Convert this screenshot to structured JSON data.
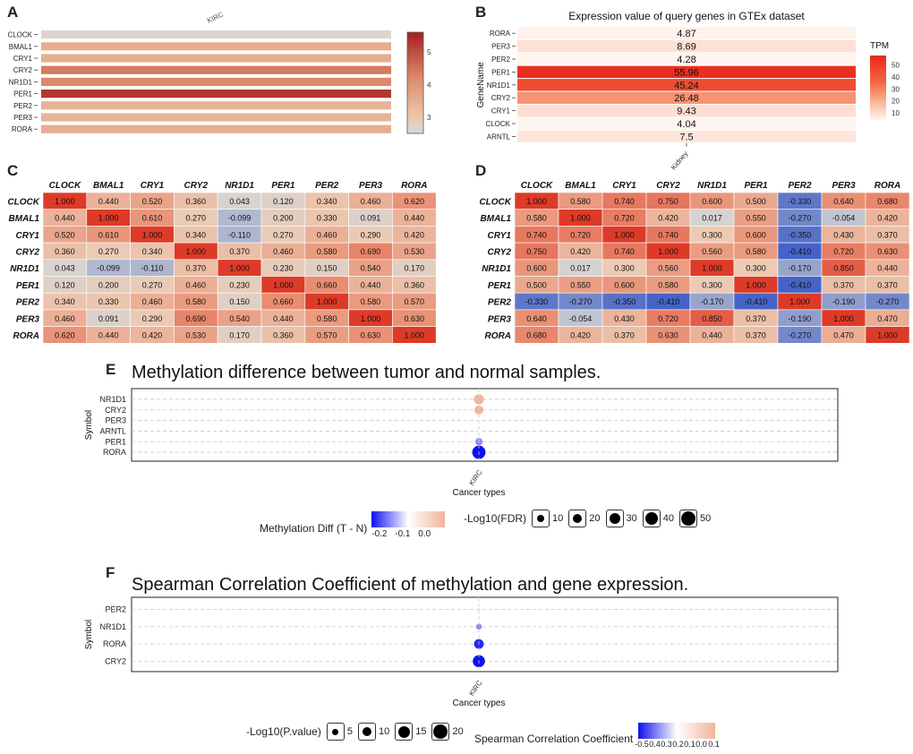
{
  "panels": {
    "a": "A",
    "b": "B",
    "c": "C",
    "d": "D",
    "e": "E",
    "f": "F"
  },
  "colors": {
    "pos": "#d7301f",
    "neg": "#3b5bc4",
    "mid": "#dddddd",
    "bluedot": "#1010ee",
    "pinkdot": "#f2b49a"
  },
  "chart_data": [
    {
      "id": "A",
      "type": "heatmap",
      "title": "",
      "column_label": "KIRC",
      "rows": [
        "CLOCK",
        "BMAL1",
        "CRY1",
        "CRY2",
        "NR1D1",
        "PER1",
        "PER2",
        "PER3",
        "RORA"
      ],
      "values": [
        2.6,
        3.5,
        3.5,
        4.4,
        4.2,
        5.3,
        3.4,
        3.4,
        3.5
      ],
      "colorbar": {
        "ticks": [
          3,
          4,
          5
        ],
        "range": [
          2.5,
          5.6
        ]
      }
    },
    {
      "id": "B",
      "type": "heatmap",
      "title": "Expression value of query genes in GTEx dataset",
      "ylabel": "GeneName",
      "xlabel_tick": "Kidney",
      "rows": [
        "RORA",
        "PER3",
        "PER2",
        "PER1",
        "NR1D1",
        "CRY2",
        "CRY1",
        "CLOCK",
        "ARNTL"
      ],
      "values": [
        4.87,
        8.69,
        4.28,
        55.96,
        45.24,
        26.48,
        9.43,
        4.04,
        7.5
      ],
      "value_labels": [
        "4.87",
        "8.69",
        "4.28",
        "55.96",
        "45.24",
        "26.48",
        "9.43",
        "4.04",
        "7.5"
      ],
      "colorbar": {
        "title": "TPM",
        "ticks": [
          10,
          20,
          30,
          40,
          50
        ],
        "range": [
          4,
          58
        ]
      }
    },
    {
      "id": "C",
      "type": "heatmap",
      "genes": [
        "CLOCK",
        "BMAL1",
        "CRY1",
        "CRY2",
        "NR1D1",
        "PER1",
        "PER2",
        "PER3",
        "RORA"
      ],
      "matrix": [
        [
          "1.000",
          "0.440",
          "0.520",
          "0.360",
          "0.043",
          "0.120",
          "0.340",
          "0.460",
          "0.620"
        ],
        [
          "0.440",
          "1.000",
          "0.610",
          "0.270",
          "-0.099",
          "0.200",
          "0.330",
          "0.091",
          "0.440"
        ],
        [
          "0.520",
          "0.610",
          "1.000",
          "0.340",
          "-0.110",
          "0.270",
          "0.460",
          "0.290",
          "0.420"
        ],
        [
          "0.360",
          "0.270",
          "0.340",
          "1.000",
          "0.370",
          "0.460",
          "0.580",
          "0.690",
          "0.530"
        ],
        [
          "0.043",
          "-0.099",
          "-0.110",
          "0.370",
          "1.000",
          "0.230",
          "0.150",
          "0.540",
          "0.170"
        ],
        [
          "0.120",
          "0.200",
          "0.270",
          "0.460",
          "0.230",
          "1.000",
          "0.660",
          "0.440",
          "0.360"
        ],
        [
          "0.340",
          "0.330",
          "0.460",
          "0.580",
          "0.150",
          "0.660",
          "1.000",
          "0.580",
          "0.570"
        ],
        [
          "0.460",
          "0.091",
          "0.290",
          "0.690",
          "0.540",
          "0.440",
          "0.580",
          "1.000",
          "0.630"
        ],
        [
          "0.620",
          "0.440",
          "0.420",
          "0.530",
          "0.170",
          "0.360",
          "0.570",
          "0.630",
          "1.000"
        ]
      ]
    },
    {
      "id": "D",
      "type": "heatmap",
      "genes": [
        "CLOCK",
        "BMAL1",
        "CRY1",
        "CRY2",
        "NR1D1",
        "PER1",
        "PER2",
        "PER3",
        "RORA"
      ],
      "matrix": [
        [
          "1.000",
          "0.580",
          "0.740",
          "0.750",
          "0.600",
          "0.500",
          "-0.330",
          "0.640",
          "0.680"
        ],
        [
          "0.580",
          "1.000",
          "0.720",
          "0.420",
          "0.017",
          "0.550",
          "-0.270",
          "-0.054",
          "0.420"
        ],
        [
          "0.740",
          "0.720",
          "1.000",
          "0.740",
          "0.300",
          "0.600",
          "-0.350",
          "0.430",
          "0.370"
        ],
        [
          "0.750",
          "0.420",
          "0.740",
          "1.000",
          "0.560",
          "0.580",
          "-0.410",
          "0.720",
          "0.630"
        ],
        [
          "0.600",
          "0.017",
          "0.300",
          "0.560",
          "1.000",
          "0.300",
          "-0.170",
          "0.850",
          "0.440"
        ],
        [
          "0.500",
          "0.550",
          "0.600",
          "0.580",
          "0.300",
          "1.000",
          "-0.410",
          "0.370",
          "0.370"
        ],
        [
          "-0.330",
          "-0.270",
          "-0.350",
          "-0.410",
          "-0.170",
          "-0.410",
          "1.000",
          "-0.190",
          "-0.270"
        ],
        [
          "0.640",
          "-0.054",
          "0.430",
          "0.720",
          "0.850",
          "0.370",
          "-0.190",
          "1.000",
          "0.470"
        ],
        [
          "0.680",
          "0.420",
          "0.370",
          "0.630",
          "0.440",
          "0.370",
          "-0.270",
          "0.470",
          "1.000"
        ]
      ]
    },
    {
      "id": "E",
      "type": "scatter",
      "title": "Methylation difference between tumor and normal samples.",
      "xlabel": "Cancer types",
      "ylabel": "Symbol",
      "x_tick": "KIRC",
      "rows": [
        "NR1D1",
        "CRY2",
        "PER3",
        "ARNTL",
        "PER1",
        "RORA"
      ],
      "points": [
        {
          "symbol": "NR1D1",
          "diff": 0.03,
          "fdr": 28
        },
        {
          "symbol": "CRY2",
          "diff": 0.03,
          "fdr": 22
        },
        {
          "symbol": "PER3",
          "diff": 0.0,
          "fdr": 1
        },
        {
          "symbol": "ARNTL",
          "diff": 0.0,
          "fdr": 1
        },
        {
          "symbol": "PER1",
          "diff": -0.12,
          "fdr": 15
        },
        {
          "symbol": "RORA",
          "diff": -0.25,
          "fdr": 50
        }
      ],
      "color_legend": {
        "title": "Methylation Diff (T - N)",
        "ticks": [
          "-0.2",
          "-0.1",
          "0.0"
        ]
      },
      "size_legend": {
        "title": "-Log10(FDR)",
        "values": [
          10,
          20,
          30,
          40,
          50
        ]
      }
    },
    {
      "id": "F",
      "type": "scatter",
      "title": "Spearman Correlation Coefficient of methylation and gene expression.",
      "xlabel": "Cancer types",
      "ylabel": "Symbol",
      "x_tick": "KIRC",
      "rows": [
        "PER2",
        "NR1D1",
        "RORA",
        "CRY2"
      ],
      "points": [
        {
          "symbol": "PER2",
          "rho": 0.05,
          "p": 1
        },
        {
          "symbol": "NR1D1",
          "rho": -0.25,
          "p": 5
        },
        {
          "symbol": "RORA",
          "rho": -0.45,
          "p": 14
        },
        {
          "symbol": "CRY2",
          "rho": -0.55,
          "p": 22
        }
      ],
      "size_legend": {
        "title": "-Log10(P.value)",
        "values": [
          5,
          10,
          15,
          20
        ]
      },
      "color_legend": {
        "title": "Spearman Correlation Coefficient",
        "ticks": [
          "-0.5",
          "0.4",
          "0.3",
          "0.2",
          "0.1",
          "0.0",
          "0.1"
        ]
      }
    }
  ]
}
